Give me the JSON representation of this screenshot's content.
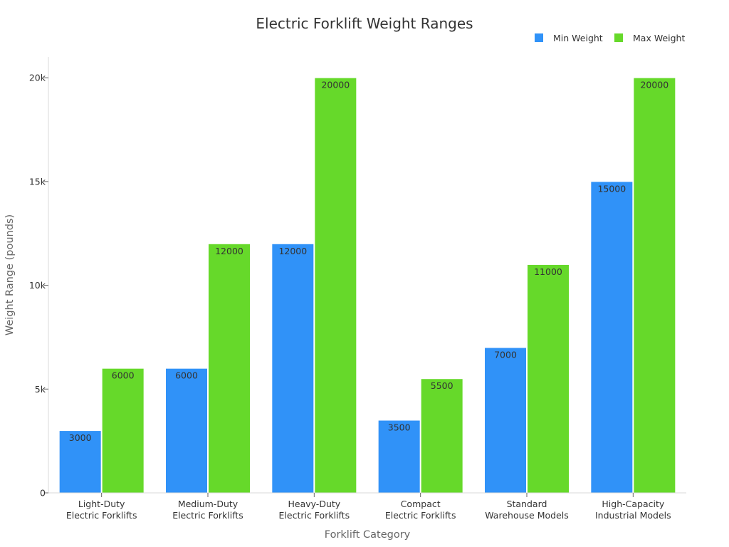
{
  "chart_data": {
    "type": "bar",
    "title": "Electric Forklift Weight Ranges",
    "xlabel": "Forklift Category",
    "ylabel": "Weight Range (pounds)",
    "ylim": [
      0,
      21000
    ],
    "yticks": [
      0,
      5000,
      10000,
      15000,
      20000
    ],
    "ytick_labels": [
      "0",
      "5k",
      "10k",
      "15k",
      "20k"
    ],
    "categories": [
      [
        "Light-Duty",
        "Electric Forklifts"
      ],
      [
        "Medium-Duty",
        "Electric Forklifts"
      ],
      [
        "Heavy-Duty",
        "Electric Forklifts"
      ],
      [
        "Compact",
        "Electric Forklifts"
      ],
      [
        "Standard",
        "Warehouse Models"
      ],
      [
        "High-Capacity",
        "Industrial Models"
      ]
    ],
    "series": [
      {
        "name": "Min Weight",
        "color": "#3092f8",
        "values": [
          3000,
          6000,
          12000,
          3500,
          7000,
          15000
        ],
        "labels": [
          "3000",
          "6000",
          "12000",
          "3500",
          "7000",
          "15000"
        ]
      },
      {
        "name": "Max Weight",
        "color": "#66d92a",
        "values": [
          6000,
          12000,
          20000,
          5500,
          11000,
          20000
        ],
        "labels": [
          "6000",
          "12000",
          "20000",
          "5500",
          "11000",
          "20000"
        ]
      }
    ],
    "legend_position": "top-right",
    "grid": false
  }
}
